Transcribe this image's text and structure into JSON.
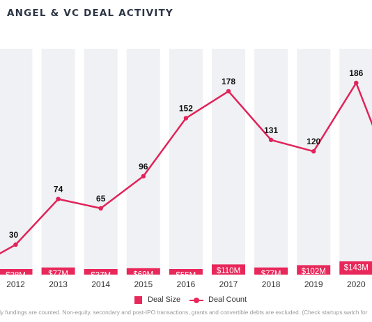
{
  "header": {
    "title": "ANGEL & VC DEAL ACTIVITY"
  },
  "legend": {
    "deal_size": "Deal Size",
    "deal_count": "Deal Count"
  },
  "footnote": "Only fundings are counted. Non-equity, secondary and post-IPO transactions, grants and convertible debts are excluded. (Check startups.watch for",
  "colors": {
    "accent": "#e8275a",
    "column_bg": "#f0f1f4",
    "line": "#e0235a"
  },
  "chart_data": {
    "type": "bar",
    "categories": [
      "2012",
      "2013",
      "2014",
      "2015",
      "2016",
      "2017",
      "2018",
      "2019",
      "2020"
    ],
    "series": [
      {
        "name": "Deal Size",
        "type": "bar",
        "values": [
          28,
          77,
          37,
          69,
          55,
          110,
          77,
          102,
          143
        ],
        "labels": [
          "$28M",
          "$77M",
          "$37M",
          "$69M",
          "$55M",
          "$110M",
          "$77M",
          "$102M",
          "$143M"
        ]
      },
      {
        "name": "Deal Count",
        "type": "line",
        "values": [
          30,
          74,
          65,
          96,
          152,
          178,
          131,
          120,
          186
        ],
        "labels": [
          "30",
          "74",
          "65",
          "96",
          "152",
          "178",
          "131",
          "120",
          "186"
        ]
      }
    ],
    "grid": false,
    "legend": "bottom"
  }
}
